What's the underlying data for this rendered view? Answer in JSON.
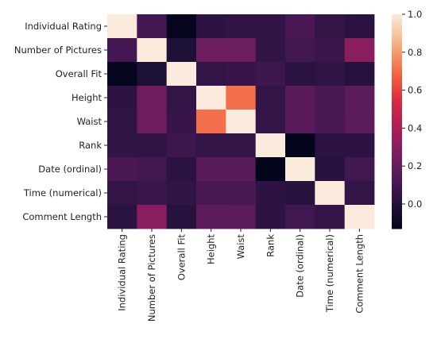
{
  "chart_data": {
    "type": "heatmap",
    "title": "",
    "xlabel": "",
    "ylabel": "",
    "labels": [
      "Individual Rating",
      "Number of Pictures",
      "Overall Fit",
      "Height",
      "Waist",
      "Rank",
      "Date (ordinal)",
      "Time (numerical)",
      "Comment Length"
    ],
    "matrix": [
      [
        1.0,
        0.1,
        -0.12,
        0.03,
        0.04,
        0.04,
        0.12,
        0.05,
        0.02
      ],
      [
        0.1,
        1.0,
        -0.02,
        0.22,
        0.22,
        0.04,
        0.09,
        0.07,
        0.3
      ],
      [
        -0.12,
        -0.02,
        1.0,
        0.05,
        0.06,
        0.08,
        0.02,
        0.04,
        0.01
      ],
      [
        0.03,
        0.22,
        0.05,
        1.0,
        0.71,
        0.05,
        0.16,
        0.11,
        0.17
      ],
      [
        0.04,
        0.22,
        0.06,
        0.71,
        1.0,
        0.05,
        0.16,
        0.12,
        0.17
      ],
      [
        0.04,
        0.04,
        0.08,
        0.05,
        0.05,
        1.0,
        -0.13,
        0.03,
        0.03
      ],
      [
        0.12,
        0.09,
        0.02,
        0.16,
        0.16,
        -0.13,
        1.0,
        0.01,
        0.09
      ],
      [
        0.05,
        0.07,
        0.04,
        0.11,
        0.12,
        0.03,
        0.01,
        1.0,
        0.05
      ],
      [
        0.02,
        0.3,
        0.01,
        0.17,
        0.17,
        0.03,
        0.09,
        0.05,
        1.0
      ]
    ],
    "colorbar": {
      "range": [
        -0.13,
        1.0
      ],
      "ticks": [
        0.0,
        0.2,
        0.4,
        0.6,
        0.8,
        1.0
      ],
      "tick_labels": [
        "0.0",
        "0.2",
        "0.4",
        "0.6",
        "0.8",
        "1.0"
      ],
      "colormap": "rocket"
    }
  }
}
